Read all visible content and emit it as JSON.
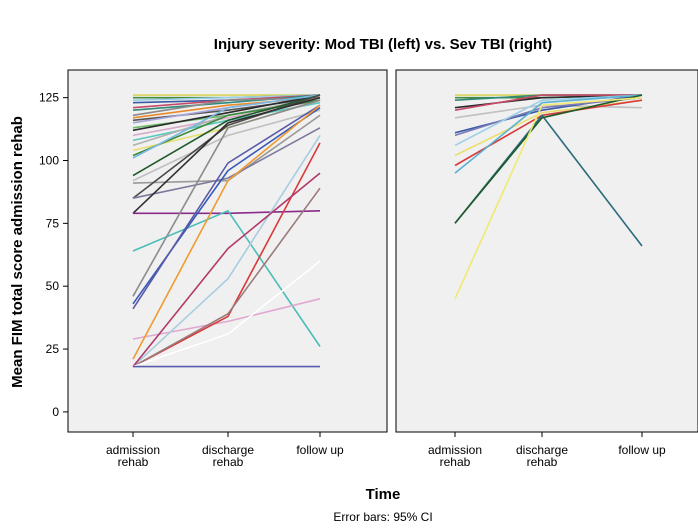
{
  "chart_data": {
    "type": "line",
    "title": "Injury severity: Mod TBI (left) vs. Sev TBI (right)",
    "xlabel": "Time",
    "ylabel": "Mean FIM total score admission rehab",
    "footnote": "Error bars: 95% CI",
    "categories": [
      [
        "admission",
        "rehab"
      ],
      [
        "discharge",
        "rehab"
      ],
      [
        "follow up"
      ]
    ],
    "yticks": [
      0,
      25,
      50,
      75,
      100,
      125
    ],
    "ylim": [
      -8,
      136
    ],
    "panels": [
      {
        "name": "Mod TBI",
        "series": [
          {
            "values": [
              126,
              126,
              126
            ],
            "color": "#d9d45a"
          },
          {
            "values": [
              125,
              125,
              126
            ],
            "color": "#4a8a3a"
          },
          {
            "values": [
              124,
              125,
              126
            ],
            "color": "#9bd0e6"
          },
          {
            "values": [
              123,
              124,
              125
            ],
            "color": "#3a5aa8"
          },
          {
            "values": [
              121,
              124,
              126
            ],
            "color": "#c84a6a"
          },
          {
            "values": [
              120,
              123,
              126
            ],
            "color": "#2f8a7a"
          },
          {
            "values": [
              118,
              124,
              125
            ],
            "color": "#8a8a8a"
          },
          {
            "values": [
              117,
              122,
              125
            ],
            "color": "#e88a2a"
          },
          {
            "values": [
              116,
              120,
              125
            ],
            "color": "#555555"
          },
          {
            "values": [
              115,
              121,
              126
            ],
            "color": "#a8a3d8"
          },
          {
            "values": [
              113,
              118,
              124
            ],
            "color": "#6ab86a"
          },
          {
            "values": [
              112,
              119,
              126
            ],
            "color": "#2a2a2a"
          },
          {
            "values": [
              110,
              117,
              124
            ],
            "color": "#d8a8c8"
          },
          {
            "values": [
              108,
              116,
              123
            ],
            "color": "#5ac8c0"
          },
          {
            "values": [
              106,
              118,
              125
            ],
            "color": "#b0b0b0"
          },
          {
            "values": [
              104,
              113,
              124
            ],
            "color": "#e8e070"
          },
          {
            "values": [
              102,
              118,
              124
            ],
            "color": "#3c8c3c"
          },
          {
            "values": [
              101,
              121,
              126
            ],
            "color": "#7ab8e0"
          },
          {
            "values": [
              94,
              116,
              126
            ],
            "color": "#1f5a2a"
          },
          {
            "values": [
              92,
              110,
              120
            ],
            "color": "#c0c0c0"
          },
          {
            "values": [
              91,
              92,
              118
            ],
            "color": "#9a9a9a"
          },
          {
            "values": [
              85,
              114,
              126
            ],
            "color": "#4a4a4a"
          },
          {
            "values": [
              85,
              93,
              113
            ],
            "color": "#7a7a9a"
          },
          {
            "values": [
              79,
              115,
              125
            ],
            "color": "#303030"
          },
          {
            "values": [
              79,
              79,
              80
            ],
            "color": "#8a2a8a"
          },
          {
            "values": [
              64,
              80,
              26
            ],
            "color": "#4cbcb6"
          },
          {
            "values": [
              46,
              113,
              124
            ],
            "color": "#8c8c8c"
          },
          {
            "values": [
              43,
              96,
              121
            ],
            "color": "#3a5ab8"
          },
          {
            "values": [
              41,
              99,
              122
            ],
            "color": "#5a5aa8"
          },
          {
            "values": [
              29,
              36,
              45
            ],
            "color": "#e0a8d0"
          },
          {
            "values": [
              21,
              92,
              122
            ],
            "color": "#f09a30"
          },
          {
            "values": [
              18,
              53,
              110
            ],
            "color": "#a8cce0"
          },
          {
            "values": [
              18,
              38,
              107
            ],
            "color": "#d83a3a"
          },
          {
            "values": [
              18,
              39,
              89
            ],
            "color": "#9a7a7a"
          },
          {
            "values": [
              18,
              65,
              95
            ],
            "color": "#b03a6a"
          },
          {
            "values": [
              18,
              31,
              60
            ],
            "color": "#ffffff"
          },
          {
            "values": [
              18,
              18,
              18
            ],
            "color": "#5a5ab0"
          }
        ]
      },
      {
        "name": "Sev TBI",
        "series": [
          {
            "values": [
              126,
              126,
              126
            ],
            "color": "#d9d45a"
          },
          {
            "values": [
              125,
              125,
              126
            ],
            "color": "#4a8a3a"
          },
          {
            "values": [
              124,
              126,
              126
            ],
            "color": "#2f8a7a"
          },
          {
            "values": [
              121,
              125,
              126
            ],
            "color": "#2a2a2a"
          },
          {
            "values": [
              120,
              126,
              126
            ],
            "color": "#c84a6a"
          },
          {
            "values": [
              117,
              122,
              121
            ],
            "color": "#c0c0c0"
          },
          {
            "values": [
              111,
              120,
              126
            ],
            "color": "#3a5aa8"
          },
          {
            "values": [
              110,
              121,
              125
            ],
            "color": "#7a7ab8"
          },
          {
            "values": [
              106,
              124,
              126
            ],
            "color": "#9bd0e6"
          },
          {
            "values": [
              102,
              119,
              124
            ],
            "color": "#e8e070"
          },
          {
            "values": [
              98,
              118,
              124
            ],
            "color": "#d83a3a"
          },
          {
            "values": [
              95,
              123,
              126
            ],
            "color": "#5ab0d0"
          },
          {
            "values": [
              75,
              118,
              66
            ],
            "color": "#2a6a7a"
          },
          {
            "values": [
              75,
              117,
              126
            ],
            "color": "#1f5a2a"
          },
          {
            "values": [
              45,
              122,
              125
            ],
            "color": "#f0ea70"
          }
        ]
      }
    ]
  }
}
